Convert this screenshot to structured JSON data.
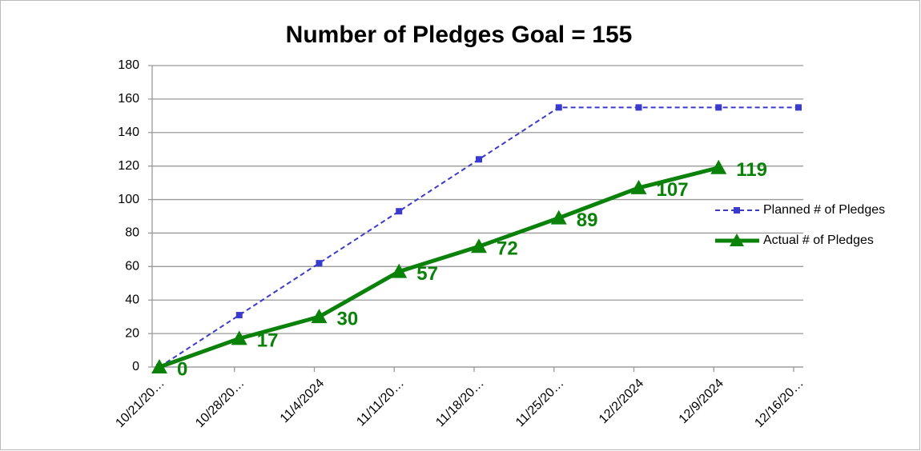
{
  "chart_data": {
    "type": "line",
    "title": "Number of Pledges Goal = 155",
    "categories": [
      "10/21/20…",
      "10/28/20…",
      "11/4/2024",
      "11/11/20…",
      "11/18/20…",
      "11/25/20…",
      "12/2/2024",
      "12/9/2024",
      "12/16/20…"
    ],
    "series": [
      {
        "name": "Planned # of Pledges",
        "color": "#3a3acc",
        "marker": "square",
        "dashed": true,
        "data_labels": false,
        "values": [
          0,
          31,
          62,
          93,
          124,
          155,
          155,
          155,
          155
        ]
      },
      {
        "name": "Actual # of Pledges",
        "color": "#0a820a",
        "marker": "triangle",
        "dashed": false,
        "data_labels": true,
        "values": [
          0,
          17,
          30,
          57,
          72,
          89,
          107,
          119,
          null
        ]
      }
    ],
    "ylim": [
      0,
      180
    ],
    "yticks": [
      0,
      20,
      40,
      60,
      80,
      100,
      120,
      140,
      160,
      180
    ],
    "grid": true,
    "legend": "right"
  }
}
